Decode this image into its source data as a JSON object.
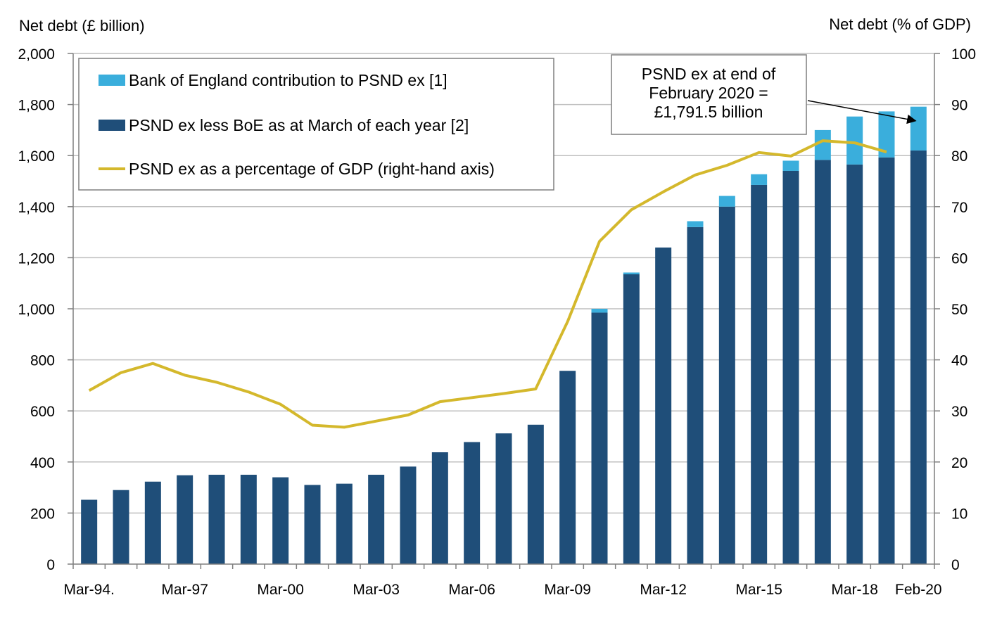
{
  "chart_data": {
    "type": "bar",
    "stacked": true,
    "title": "",
    "ylabel_left": "Net debt (£ billion)",
    "ylabel_right": "Net debt (% of GDP)",
    "ylim_left": [
      0,
      2000
    ],
    "ylim_right": [
      0,
      100
    ],
    "yticks_left": [
      "0",
      "200",
      "400",
      "600",
      "800",
      "1,000",
      "1,200",
      "1,400",
      "1,600",
      "1,800",
      "2,000"
    ],
    "yticks_right": [
      "0",
      "10",
      "20",
      "30",
      "40",
      "50",
      "60",
      "70",
      "80",
      "90",
      "100"
    ],
    "x_tick_labels": [
      {
        "index": 0,
        "label": "Mar-94."
      },
      {
        "index": 3,
        "label": "Mar-97"
      },
      {
        "index": 6,
        "label": "Mar-00"
      },
      {
        "index": 9,
        "label": "Mar-03"
      },
      {
        "index": 12,
        "label": "Mar-06"
      },
      {
        "index": 15,
        "label": "Mar-09"
      },
      {
        "index": 18,
        "label": "Mar-12"
      },
      {
        "index": 21,
        "label": "Mar-15"
      },
      {
        "index": 24,
        "label": "Mar-18"
      },
      {
        "index": 26,
        "label": "Feb-20"
      }
    ],
    "grid": true,
    "legend_position": "top-left",
    "categories": [
      "Mar-94",
      "Mar-95",
      "Mar-96",
      "Mar-97",
      "Mar-98",
      "Mar-99",
      "Mar-00",
      "Mar-01",
      "Mar-02",
      "Mar-03",
      "Mar-04",
      "Mar-05",
      "Mar-06",
      "Mar-07",
      "Mar-08",
      "Mar-09",
      "Mar-10",
      "Mar-11",
      "Mar-12",
      "Mar-13",
      "Mar-14",
      "Mar-15",
      "Mar-16",
      "Mar-17",
      "Mar-18",
      "Mar-19",
      "Feb-20"
    ],
    "series": [
      {
        "name": "PSND ex less BoE as at March of each year [2]",
        "kind": "bar",
        "axis": "left",
        "color": "#1f4e79",
        "values": [
          252,
          290,
          323,
          348,
          350,
          350,
          340,
          310,
          315,
          350,
          382,
          438,
          478,
          512,
          546,
          757,
          985,
          1135,
          1240,
          1320,
          1400,
          1485,
          1540,
          1583,
          1565,
          1593,
          1620
        ]
      },
      {
        "name": "Bank of England contribution to PSND ex [1]",
        "kind": "bar",
        "axis": "left",
        "color": "#3aaedc",
        "values": [
          0,
          0,
          0,
          0,
          0,
          0,
          0,
          0,
          0,
          0,
          0,
          0,
          0,
          0,
          0,
          0,
          15,
          7,
          0,
          23,
          42,
          42,
          40,
          117,
          188,
          180,
          171.5
        ]
      },
      {
        "name": "PSND ex as a percentage of GDP (right-hand axis)",
        "kind": "line",
        "axis": "right",
        "color": "#d4b82c",
        "values": [
          34.0,
          37.5,
          39.3,
          37.0,
          35.6,
          33.7,
          31.3,
          27.2,
          26.8,
          28.0,
          29.2,
          31.8,
          32.6,
          33.4,
          34.3,
          47.5,
          63.2,
          69.4,
          72.9,
          76.2,
          78.1,
          80.6,
          79.9,
          82.9,
          82.5,
          80.7,
          null
        ]
      }
    ],
    "annotation": {
      "lines": [
        "PSND ex at end of",
        "February 2020 =",
        "£1,791.5 billion"
      ],
      "arrow_to_index": 26
    }
  }
}
